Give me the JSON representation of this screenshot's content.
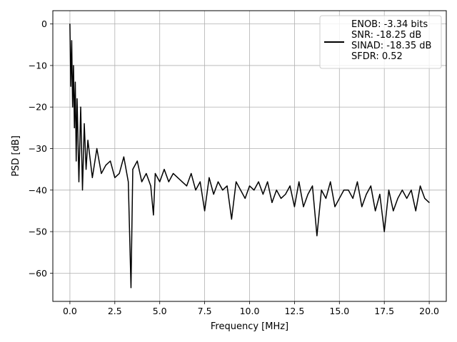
{
  "chart_data": {
    "type": "line",
    "title": "",
    "xlabel": "Frequency [MHz]",
    "ylabel": "PSD [dB]",
    "xlim": [
      -0.95,
      20.95
    ],
    "ylim": [
      -66.8,
      3.2
    ],
    "xticks": [
      0.0,
      2.5,
      5.0,
      7.5,
      10.0,
      12.5,
      15.0,
      17.5,
      20.0
    ],
    "xtick_labels": [
      "0.0",
      "2.5",
      "5.0",
      "7.5",
      "10.0",
      "12.5",
      "15.0",
      "17.5",
      "20.0"
    ],
    "yticks": [
      0,
      -10,
      -20,
      -30,
      -40,
      -50,
      -60
    ],
    "ytick_labels": [
      "0",
      "−10",
      "−20",
      "−30",
      "−40",
      "−50",
      "−60"
    ],
    "grid": true,
    "legend_position": "upper right",
    "legend_entries": [
      "ENOB: -3.34 bits",
      "SNR: -18.25 dB",
      "SINAD: -18.35 dB",
      "SFDR: 0.52"
    ],
    "series_color": "#000000",
    "grid_color": "#b0b0b0",
    "series": [
      {
        "name": "",
        "x": [
          0.0,
          0.05,
          0.1,
          0.15,
          0.2,
          0.25,
          0.3,
          0.35,
          0.4,
          0.5,
          0.6,
          0.7,
          0.8,
          0.9,
          1.0,
          1.25,
          1.5,
          1.75,
          2.0,
          2.25,
          2.5,
          2.75,
          3.0,
          3.25,
          3.4,
          3.5,
          3.75,
          4.0,
          4.25,
          4.5,
          4.65,
          4.75,
          5.0,
          5.25,
          5.5,
          5.75,
          6.0,
          6.25,
          6.5,
          6.75,
          7.0,
          7.25,
          7.5,
          7.75,
          8.0,
          8.25,
          8.5,
          8.75,
          9.0,
          9.25,
          9.5,
          9.75,
          10.0,
          10.25,
          10.5,
          10.75,
          11.0,
          11.25,
          11.5,
          11.75,
          12.0,
          12.25,
          12.5,
          12.75,
          13.0,
          13.25,
          13.5,
          13.75,
          14.0,
          14.25,
          14.5,
          14.75,
          15.0,
          15.25,
          15.5,
          15.75,
          16.0,
          16.25,
          16.5,
          16.75,
          17.0,
          17.25,
          17.5,
          17.75,
          18.0,
          18.25,
          18.5,
          18.75,
          19.0,
          19.25,
          19.5,
          19.75,
          20.0
        ],
        "y": [
          0.0,
          -15.0,
          -4.0,
          -20.0,
          -10.0,
          -25.0,
          -14.0,
          -33.0,
          -18.0,
          -38.0,
          -20.0,
          -40.0,
          -24.0,
          -35.0,
          -28.0,
          -37.0,
          -30.0,
          -36.0,
          -34.0,
          -33.0,
          -37.0,
          -36.0,
          -32.0,
          -38.0,
          -63.5,
          -35.0,
          -33.0,
          -38.0,
          -36.0,
          -39.0,
          -46.0,
          -36.0,
          -38.0,
          -35.0,
          -38.0,
          -36.0,
          -37.0,
          -38.0,
          -39.0,
          -36.0,
          -40.0,
          -38.0,
          -45.0,
          -37.0,
          -41.0,
          -38.0,
          -40.0,
          -39.0,
          -47.0,
          -38.0,
          -40.0,
          -42.0,
          -39.0,
          -40.0,
          -38.0,
          -41.0,
          -38.0,
          -43.0,
          -40.0,
          -42.0,
          -41.0,
          -39.0,
          -44.0,
          -38.0,
          -44.0,
          -41.0,
          -39.0,
          -51.0,
          -40.0,
          -42.0,
          -38.0,
          -44.0,
          -42.0,
          -40.0,
          -40.0,
          -42.0,
          -38.0,
          -44.0,
          -41.0,
          -39.0,
          -45.0,
          -41.0,
          -50.0,
          -40.0,
          -45.0,
          -42.0,
          -40.0,
          -42.0,
          -40.0,
          -45.0,
          -39.0,
          -42.0,
          -43.0
        ]
      }
    ]
  }
}
